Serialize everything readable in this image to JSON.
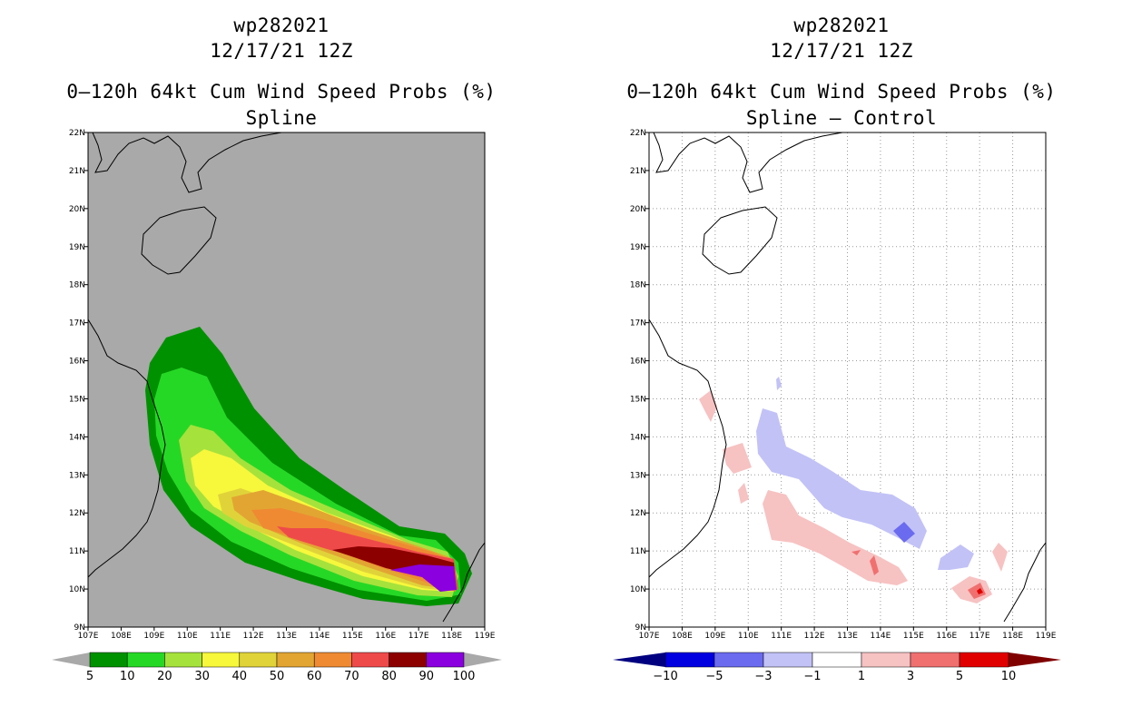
{
  "maps": {
    "left": {
      "storm_id": "wp282021",
      "datetime": "12/17/21 12Z",
      "product": "0–120h 64kt Cum Wind Speed Probs (%)",
      "subtitle": "Spline",
      "colorbar": {
        "labels": [
          "5",
          "10",
          "20",
          "30",
          "40",
          "50",
          "60",
          "70",
          "80",
          "90",
          "100"
        ],
        "colors": [
          "#009100",
          "#26d826",
          "#a6e23c",
          "#f7f73c",
          "#e0d33a",
          "#e2a532",
          "#ef8a33",
          "#ef4a4a",
          "#8c0000",
          "#8a00df"
        ]
      }
    },
    "right": {
      "storm_id": "wp282021",
      "datetime": "12/17/21 12Z",
      "product": "0–120h 64kt Cum Wind Speed Probs (%)",
      "subtitle": "Spline – Control",
      "colorbar": {
        "labels": [
          "−10",
          "−5",
          "−3",
          "−1",
          "1",
          "3",
          "5",
          "10"
        ],
        "colors": [
          "#0000e0",
          "#6b6bf0",
          "#c2c2f7",
          "#ffffff",
          "#f7c2c2",
          "#f07070",
          "#e10000"
        ]
      }
    },
    "axes": {
      "lon_labels": [
        "107E",
        "108E",
        "109E",
        "110E",
        "111E",
        "112E",
        "113E",
        "114E",
        "115E",
        "116E",
        "117E",
        "118E",
        "119E"
      ],
      "lat_labels": [
        "9N",
        "10N",
        "11N",
        "12N",
        "13N",
        "14N",
        "15N",
        "16N",
        "17N",
        "18N",
        "19N",
        "20N",
        "21N",
        "22N"
      ]
    },
    "colors": {
      "land_bg": "#a9a9a9",
      "ocean_bg": "#ffffff"
    }
  }
}
